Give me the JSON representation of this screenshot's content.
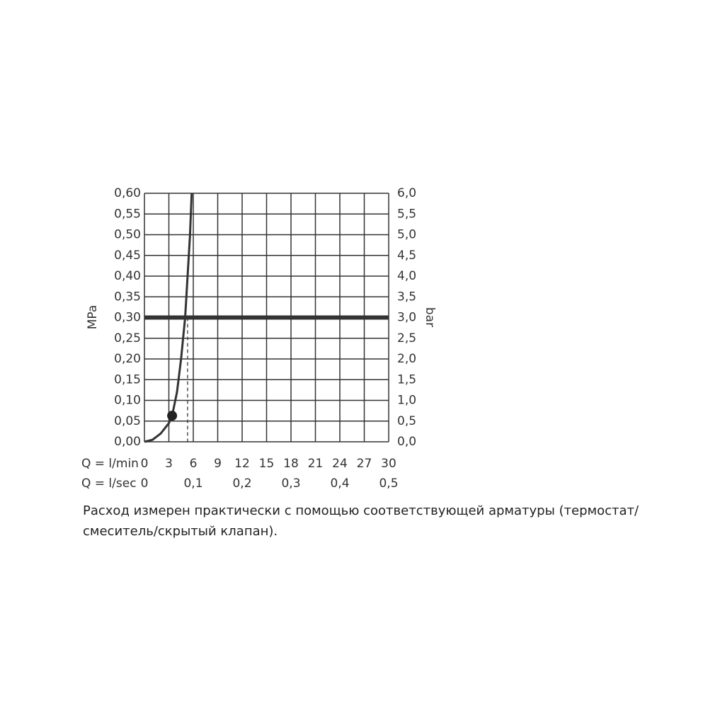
{
  "chart_data": {
    "type": "line",
    "y_label": "MPa",
    "y2_label": "bar",
    "x_label": "Q = l/min",
    "x2_label": "Q = l/sec",
    "series": [
      {
        "color": "#333333",
        "x": [
          0,
          1,
          2,
          3,
          3.4,
          4,
          4.5,
          5,
          5.3,
          5.6,
          5.8
        ],
        "values": [
          0,
          0.005,
          0.02,
          0.045,
          0.063,
          0.12,
          0.2,
          0.3,
          0.4,
          0.5,
          0.6
        ]
      }
    ],
    "highlight_point": {
      "x": 3.4,
      "y": 0.063
    },
    "reference_line": 0.3,
    "flow_marker": 5.3,
    "xlim": [
      0,
      30
    ],
    "xticks": [
      0,
      3,
      6,
      9,
      12,
      15,
      18,
      21,
      24,
      27,
      30
    ],
    "x2lim": [
      0,
      0.5
    ],
    "x2ticks": [
      {
        "value": 0,
        "label": "0"
      },
      {
        "value": 0.1,
        "label": "0,1"
      },
      {
        "value": 0.2,
        "label": "0,2"
      },
      {
        "value": 0.3,
        "label": "0,3"
      },
      {
        "value": 0.4,
        "label": "0,4"
      },
      {
        "value": 0.5,
        "label": "0,5"
      }
    ],
    "ylim": [
      0,
      0.6
    ],
    "yticks": [
      {
        "value": 0,
        "label": "0,00"
      },
      {
        "value": 0.05,
        "label": "0,05"
      },
      {
        "value": 0.1,
        "label": "0,10"
      },
      {
        "value": 0.15,
        "label": "0,15"
      },
      {
        "value": 0.2,
        "label": "0,20"
      },
      {
        "value": 0.25,
        "label": "0,25"
      },
      {
        "value": 0.3,
        "label": "0,30"
      },
      {
        "value": 0.35,
        "label": "0,35"
      },
      {
        "value": 0.4,
        "label": "0,40"
      },
      {
        "value": 0.45,
        "label": "0,45"
      },
      {
        "value": 0.5,
        "label": "0,50"
      },
      {
        "value": 0.55,
        "label": "0,55"
      },
      {
        "value": 0.6,
        "label": "0,60"
      }
    ],
    "y2lim": [
      0,
      6
    ],
    "y2ticks": [
      {
        "value": 0,
        "label": "0,0"
      },
      {
        "value": 0.5,
        "label": "0,5"
      },
      {
        "value": 1,
        "label": "1,0"
      },
      {
        "value": 1.5,
        "label": "1,5"
      },
      {
        "value": 2,
        "label": "2,0"
      },
      {
        "value": 2.5,
        "label": "2,5"
      },
      {
        "value": 3,
        "label": "3,0"
      },
      {
        "value": 3.5,
        "label": "3,5"
      },
      {
        "value": 4,
        "label": "4,0"
      },
      {
        "value": 4.5,
        "label": "4,5"
      },
      {
        "value": 5,
        "label": "5,0"
      },
      {
        "value": 5.5,
        "label": "5,5"
      },
      {
        "value": 6,
        "label": "6,0"
      }
    ],
    "grid": true,
    "note": "Расход измерен практически с помощью соответствующей арматуры (термостат/смеситель/скрытый клапан)."
  }
}
